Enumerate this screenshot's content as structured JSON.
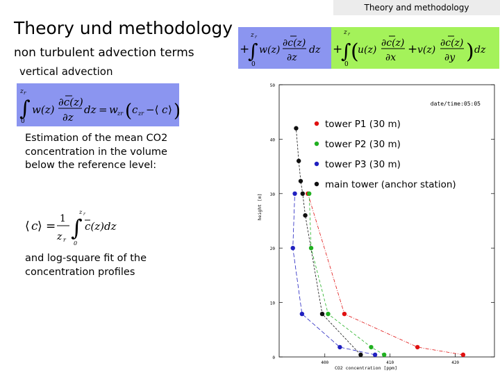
{
  "header": {
    "tab_label": "Theory and methodology"
  },
  "slide": {
    "title": "Theory und methodology",
    "subtitle": "non turbulent advection terms",
    "section_label": "vertical advection",
    "paragraph_1": "Estimation of the mean CO2 concentration in the volume below the reference level:",
    "paragraph_2": "and log-square fit of the concentration profiles"
  },
  "colors": {
    "vertical_formula_bg": "#8b95f0",
    "horizontal_formula_bg": "#a4f25a"
  },
  "chart_data": {
    "type": "scatter",
    "xlabel": "CO2 concentration [ppm]",
    "ylabel": "height [m]",
    "annotation": "date/time:05:05",
    "xlim": [
      393,
      426
    ],
    "ylim": [
      0,
      50
    ],
    "x_ticks": [
      400,
      410,
      420
    ],
    "x_tick_labels": [
      "400",
      "410",
      "420"
    ],
    "y_ticks": [
      0,
      10,
      20,
      30,
      40,
      50
    ],
    "y_tick_labels": [
      "0",
      "10",
      "20",
      "30",
      "40",
      "50"
    ],
    "legend_position": "top-right",
    "series": [
      {
        "name": "tower P1 (30 m)",
        "color": "#e01010",
        "points": [
          [
            397.4,
            30
          ],
          [
            403,
            7.9
          ],
          [
            414.2,
            1.8
          ],
          [
            421.2,
            0.4
          ]
        ]
      },
      {
        "name": "tower P2 (30 m)",
        "color": "#20b020",
        "points": [
          [
            397.6,
            30
          ],
          [
            397.9,
            20
          ],
          [
            400.5,
            7.9
          ],
          [
            407.1,
            1.8
          ],
          [
            409.1,
            0.4
          ]
        ]
      },
      {
        "name": "tower P3 (30 m)",
        "color": "#2020c0",
        "points": [
          [
            395.4,
            30
          ],
          [
            395.1,
            20
          ],
          [
            396.5,
            7.9
          ],
          [
            402.3,
            1.8
          ],
          [
            407.7,
            0.4
          ]
        ]
      },
      {
        "name": "main tower (anchor station)",
        "color": "#101010",
        "points": [
          [
            395.6,
            42
          ],
          [
            396,
            36
          ],
          [
            396.3,
            32.3
          ],
          [
            396.6,
            30
          ],
          [
            397,
            26
          ],
          [
            399.6,
            7.9
          ],
          [
            405.5,
            0.4
          ]
        ]
      }
    ]
  }
}
